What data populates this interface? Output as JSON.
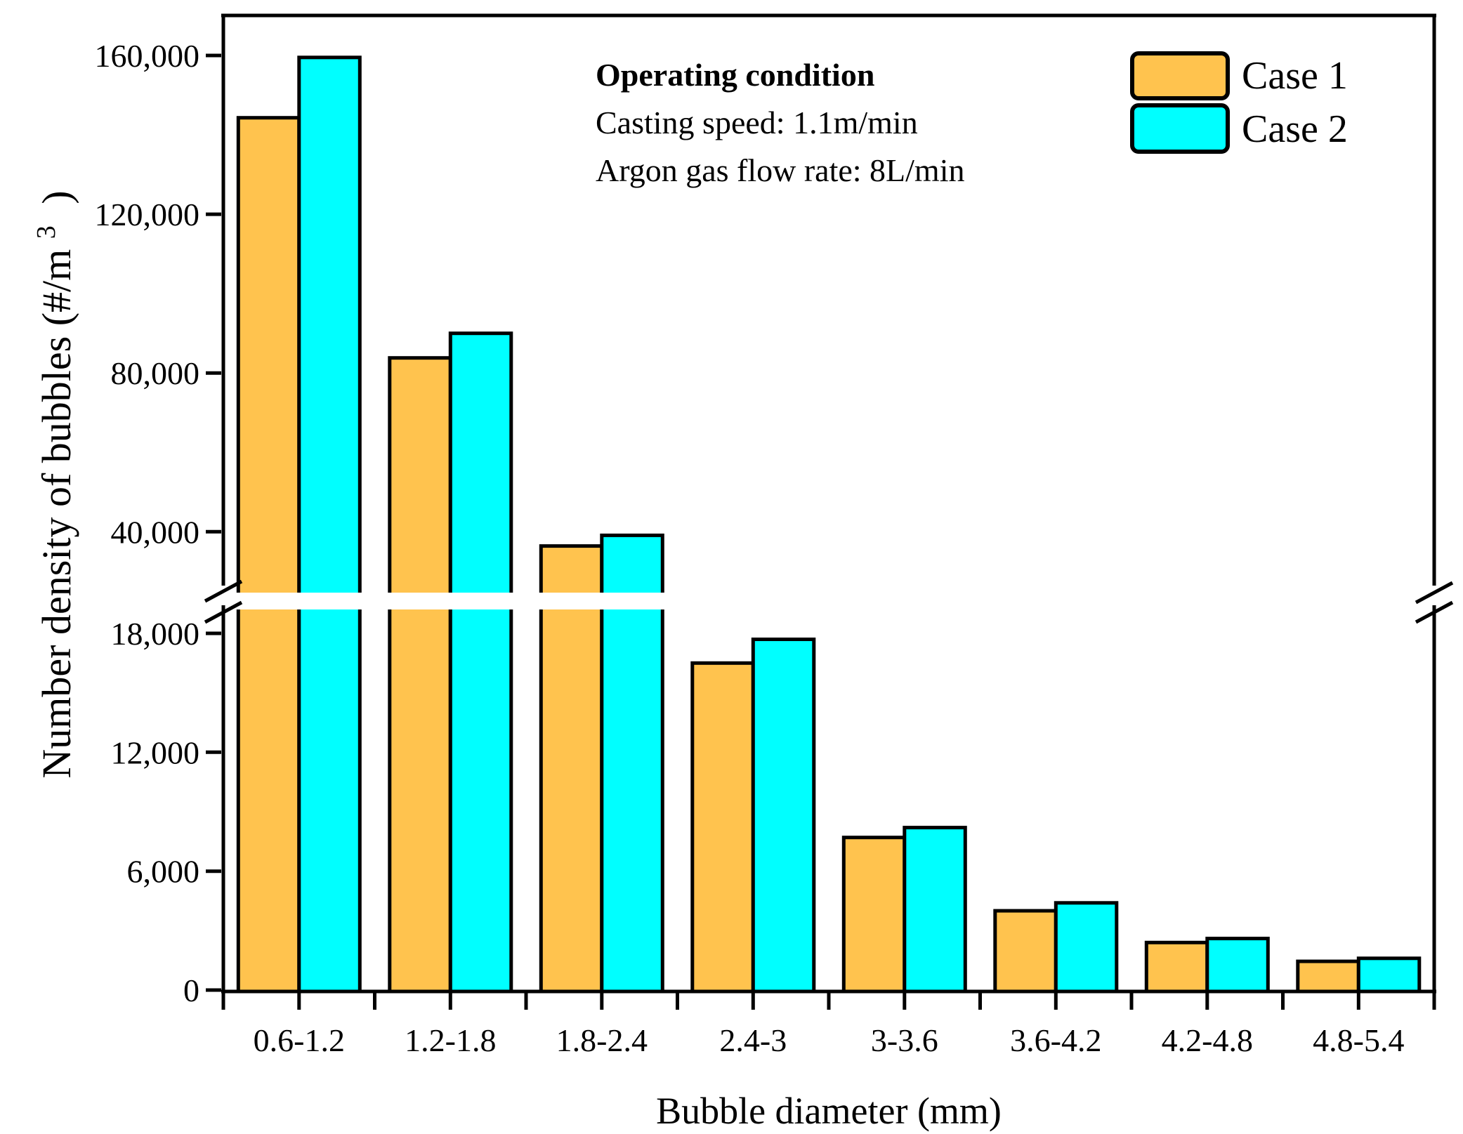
{
  "chart_data": {
    "type": "bar",
    "title": "",
    "xlabel": "Bubble diameter (mm)",
    "ylabel": "Number density of bubbles (#/m³ )",
    "ylabel_parts": [
      "Number density of bubbles (#/m",
      "3",
      ")"
    ],
    "categories": [
      "0.6-1.2",
      "1.2-1.8",
      "1.8-2.4",
      "2.4-3",
      "3-3.6",
      "3.6-4.2",
      "4.2-4.8",
      "4.8-5.4"
    ],
    "series": [
      {
        "name": "Case 1",
        "color": "#FFC34E",
        "values": [
          144300,
          83800,
          36400,
          16500,
          7700,
          4000,
          2400,
          1450
        ]
      },
      {
        "name": "Case 2",
        "color": "#00FFFF",
        "values": [
          159500,
          90000,
          39100,
          17700,
          8200,
          4400,
          2600,
          1600
        ]
      }
    ],
    "axis_break": {
      "lower_max": 19000,
      "upper_min": 25000
    },
    "y_axis": {
      "lower_range": [
        0,
        19000
      ],
      "upper_range": [
        25000,
        166000
      ],
      "upper_ticks": [
        {
          "value": 160000,
          "label": "160,000"
        },
        {
          "value": 120000,
          "label": "120,000"
        },
        {
          "value": 80000,
          "label": "80,000"
        },
        {
          "value": 40000,
          "label": "40,000"
        }
      ],
      "lower_ticks": [
        {
          "value": 18000,
          "label": "18,000"
        },
        {
          "value": 12000,
          "label": "12,000"
        },
        {
          "value": 6000,
          "label": "6,000"
        },
        {
          "value": 0,
          "label": "0"
        }
      ]
    },
    "legend": {
      "position": "top-right",
      "entries": [
        {
          "label": "Case 1",
          "color": "#FFC34E"
        },
        {
          "label": "Case 2",
          "color": "#00FFFF"
        }
      ]
    },
    "annotation": {
      "title": "Operating condition",
      "lines": [
        "Casting speed: 1.1m/min",
        "Argon gas flow rate: 8L/min"
      ]
    },
    "grid": false
  },
  "colors": {
    "case1": "#FFC34E",
    "case2": "#00FFFF",
    "outline": "#000000",
    "background": "#FFFFFF"
  }
}
